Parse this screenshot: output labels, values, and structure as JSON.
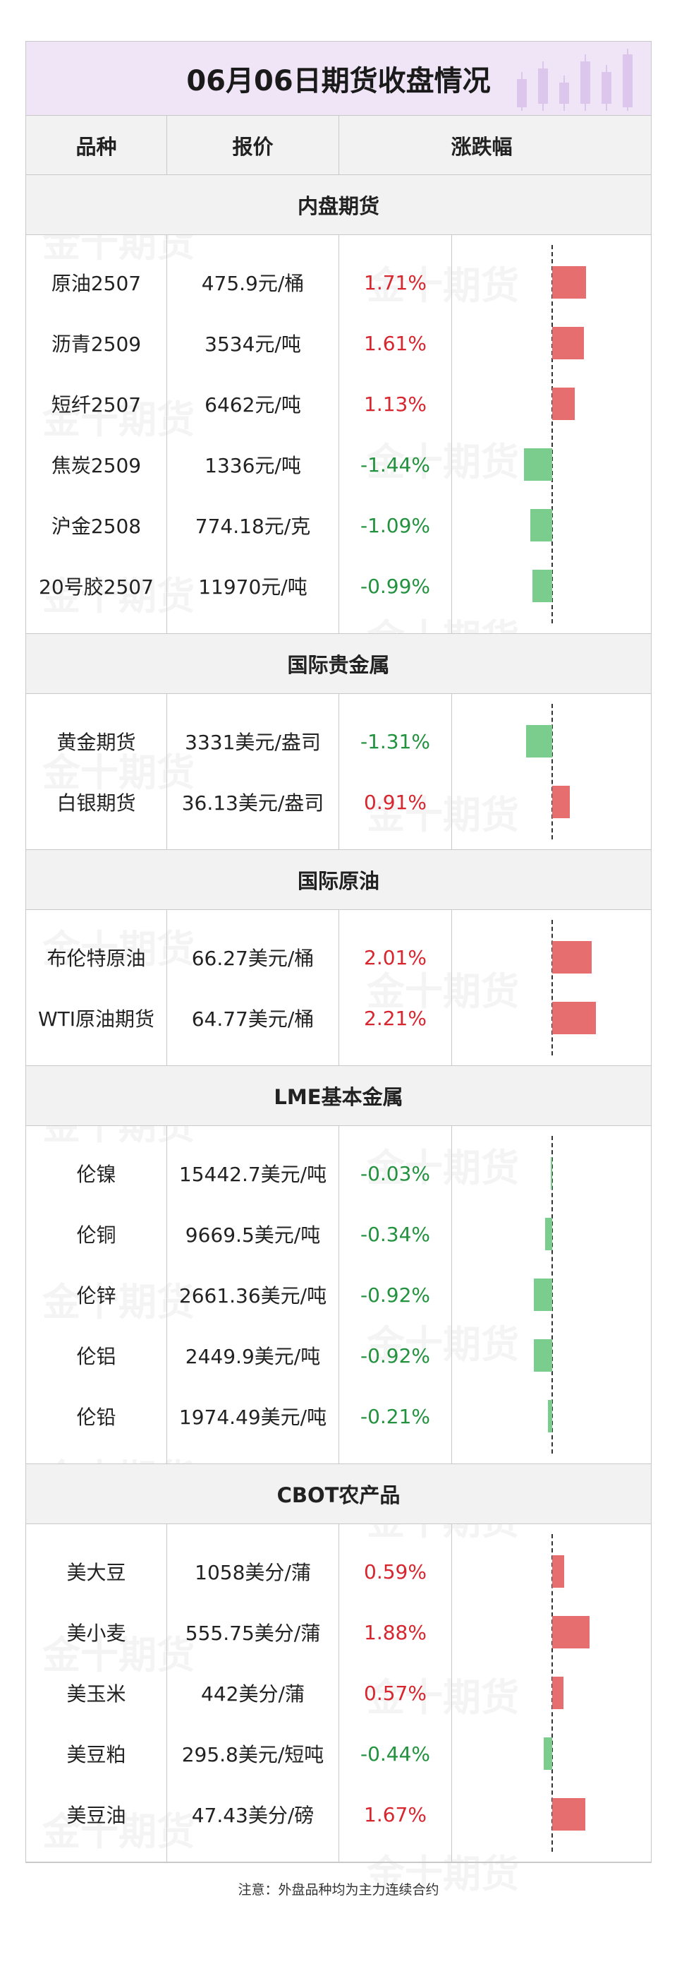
{
  "title": "06月06日期货收盘情况",
  "headers": [
    "品种",
    "报价",
    "涨跌幅"
  ],
  "note": "注意：外盘品种均为主力连续合约",
  "watermark": "金十期货",
  "colors": {
    "up": "#d8262f",
    "down": "#22923e",
    "up_bar": "#e66e6e",
    "down_bar": "#7acd8c",
    "title_bg": "#efe5f6"
  },
  "sections": [
    {
      "name": "内盘期货",
      "rows": [
        {
          "name": "原油2507",
          "price": "475.9元/桶",
          "change": "1.71%",
          "value": 1.71
        },
        {
          "name": "沥青2509",
          "price": "3534元/吨",
          "change": "1.61%",
          "value": 1.61
        },
        {
          "name": "短纤2507",
          "price": "6462元/吨",
          "change": "1.13%",
          "value": 1.13
        },
        {
          "name": "焦炭2509",
          "price": "1336元/吨",
          "change": "-1.44%",
          "value": -1.44
        },
        {
          "name": "沪金2508",
          "price": "774.18元/克",
          "change": "-1.09%",
          "value": -1.09
        },
        {
          "name": "20号胶2507",
          "price": "11970元/吨",
          "change": "-0.99%",
          "value": -0.99
        }
      ]
    },
    {
      "name": "国际贵金属",
      "rows": [
        {
          "name": "黄金期货",
          "price": "3331美元/盎司",
          "change": "-1.31%",
          "value": -1.31
        },
        {
          "name": "白银期货",
          "price": "36.13美元/盎司",
          "change": "0.91%",
          "value": 0.91
        }
      ]
    },
    {
      "name": "国际原油",
      "rows": [
        {
          "name": "布伦特原油",
          "price": "66.27美元/桶",
          "change": "2.01%",
          "value": 2.01
        },
        {
          "name": "WTI原油期货",
          "price": "64.77美元/桶",
          "change": "2.21%",
          "value": 2.21
        }
      ]
    },
    {
      "name": "LME基本金属",
      "rows": [
        {
          "name": "伦镍",
          "price": "15442.7美元/吨",
          "change": "-0.03%",
          "value": -0.03
        },
        {
          "name": "伦铜",
          "price": "9669.5美元/吨",
          "change": "-0.34%",
          "value": -0.34
        },
        {
          "name": "伦锌",
          "price": "2661.36美元/吨",
          "change": "-0.92%",
          "value": -0.92
        },
        {
          "name": "伦铝",
          "price": "2449.9美元/吨",
          "change": "-0.92%",
          "value": -0.92
        },
        {
          "name": "伦铅",
          "price": "1974.49美元/吨",
          "change": "-0.21%",
          "value": -0.21
        }
      ]
    },
    {
      "name": "CBOT农产品",
      "rows": [
        {
          "name": "美大豆",
          "price": "1058美分/蒲",
          "change": "0.59%",
          "value": 0.59
        },
        {
          "name": "美小麦",
          "price": "555.75美分/蒲",
          "change": "1.88%",
          "value": 1.88
        },
        {
          "name": "美玉米",
          "price": "442美分/蒲",
          "change": "0.57%",
          "value": 0.57
        },
        {
          "name": "美豆粕",
          "price": "295.8美元/短吨",
          "change": "-0.44%",
          "value": -0.44
        },
        {
          "name": "美豆油",
          "price": "47.43美分/磅",
          "change": "1.67%",
          "value": 1.67
        }
      ]
    }
  ],
  "chart_data": {
    "type": "bar",
    "categories": [
      "原油2507",
      "沥青2509",
      "短纤2507",
      "焦炭2509",
      "沪金2508",
      "20号胶2507",
      "黄金期货",
      "白银期货",
      "布伦特原油",
      "WTI原油期货",
      "伦镍",
      "伦铜",
      "伦锌",
      "伦铝",
      "伦铅",
      "美大豆",
      "美小麦",
      "美玉米",
      "美豆粕",
      "美豆油"
    ],
    "values": [
      1.71,
      1.61,
      1.13,
      -1.44,
      -1.09,
      -0.99,
      -1.31,
      0.91,
      2.01,
      2.21,
      -0.03,
      -0.34,
      -0.92,
      -0.92,
      -0.21,
      0.59,
      1.88,
      0.57,
      -0.44,
      1.67
    ],
    "orientation": "horizontal",
    "grid": false
  }
}
